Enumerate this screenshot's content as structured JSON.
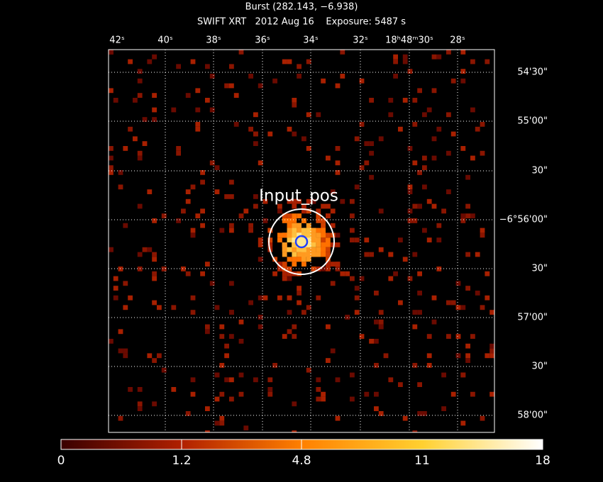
{
  "header": {
    "title": "Burst (282.143, −6.938)",
    "subtitle": "SWIFT XRT   2012 Aug 16    Exposure: 5487 s"
  },
  "image": {
    "ra_labels": [
      "42ˢ",
      "40ˢ",
      "38ˢ",
      "36ˢ",
      "34ˢ",
      "32ˢ",
      "18ʰ48ᵐ30ˢ",
      "28ˢ"
    ],
    "dec_labels": [
      "54'30\"",
      "55'00\"",
      "30\"",
      "−6°56'00\"",
      "30\"",
      "57'00\"",
      "30\"",
      "58'00\""
    ],
    "marker_label": "Input_pos"
  },
  "colorbar": {
    "labels": [
      "0",
      "1.2",
      "4.8",
      "11",
      "18"
    ]
  }
}
